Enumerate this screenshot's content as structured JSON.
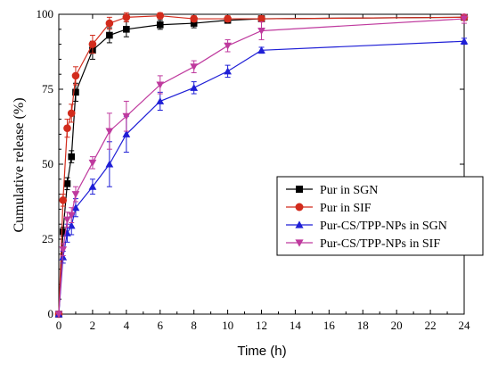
{
  "chart_data": {
    "type": "line",
    "xlabel": "Time (h)",
    "ylabel": "Cumulative release (%)",
    "xlim": [
      0,
      24
    ],
    "ylim": [
      0,
      100
    ],
    "xticks": [
      "0",
      "2",
      "4",
      "6",
      "8",
      "10",
      "12",
      "14",
      "16",
      "18",
      "20",
      "22",
      "24"
    ],
    "yticks": [
      "0",
      "25",
      "50",
      "75",
      "100"
    ],
    "legend_position": "right",
    "series": [
      {
        "name": "Pur in SGN",
        "color": "#000000",
        "marker": "square",
        "x": [
          0,
          0.25,
          0.5,
          0.75,
          1,
          2,
          3,
          4,
          6,
          8,
          10,
          12,
          24
        ],
        "y": [
          0,
          27.5,
          43.5,
          52.5,
          74,
          88,
          93,
          95,
          96.5,
          97,
          98,
          98.5,
          99
        ],
        "err": [
          0,
          1.5,
          2,
          2,
          3,
          3,
          2.5,
          2.5,
          1.5,
          1.5,
          1,
          1,
          1
        ]
      },
      {
        "name": "Pur in SIF",
        "color": "#d22b1c",
        "marker": "circle",
        "x": [
          0,
          0.25,
          0.5,
          0.75,
          1,
          2,
          3,
          4,
          6,
          8,
          10,
          12,
          24
        ],
        "y": [
          0,
          38,
          62,
          67,
          79.5,
          90,
          97,
          99,
          99.5,
          98.5,
          98.5,
          98.5,
          99
        ],
        "err": [
          0,
          2,
          3,
          3,
          3,
          3,
          2,
          1.5,
          1,
          1,
          1,
          1,
          1
        ]
      },
      {
        "name": "Pur-CS/TPP-NPs in SGN",
        "color": "#1f1fd6",
        "marker": "triangle-up",
        "x": [
          0,
          0.25,
          0.5,
          0.75,
          1,
          2,
          3,
          4,
          6,
          8,
          10,
          12,
          24
        ],
        "y": [
          0,
          19,
          27,
          29.5,
          35.5,
          42.5,
          50,
          60,
          71,
          75.5,
          81,
          88,
          91
        ],
        "err": [
          0,
          2,
          3,
          3,
          3,
          2.5,
          7.5,
          6,
          3,
          2,
          2,
          1,
          1
        ]
      },
      {
        "name": "Pur-CS/TPP-NPs in SIF",
        "color": "#bf3a9e",
        "marker": "triangle-down",
        "x": [
          0,
          0.25,
          0.5,
          0.75,
          1,
          2,
          3,
          4,
          6,
          8,
          10,
          12,
          24
        ],
        "y": [
          0,
          21.5,
          31.5,
          33,
          40,
          50.5,
          61,
          66,
          76.5,
          82.5,
          89.5,
          94.5,
          98.5
        ],
        "err": [
          0,
          2,
          2.5,
          2.5,
          2.5,
          2,
          6,
          5,
          3,
          2,
          2,
          3,
          1.5
        ]
      }
    ]
  }
}
